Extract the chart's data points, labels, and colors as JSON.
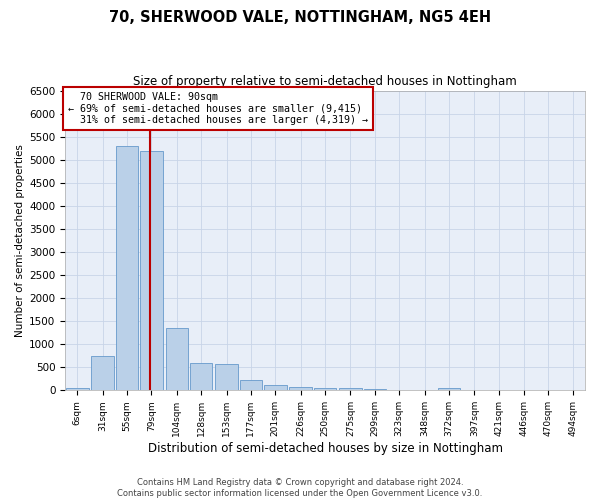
{
  "title": "70, SHERWOOD VALE, NOTTINGHAM, NG5 4EH",
  "subtitle": "Size of property relative to semi-detached houses in Nottingham",
  "xlabel": "Distribution of semi-detached houses by size in Nottingham",
  "ylabel": "Number of semi-detached properties",
  "footer_line1": "Contains HM Land Registry data © Crown copyright and database right 2024.",
  "footer_line2": "Contains public sector information licensed under the Open Government Licence v3.0.",
  "property_label": "70 SHERWOOD VALE: 90sqm",
  "pct_smaller": 69,
  "count_smaller": 9415,
  "pct_larger": 31,
  "count_larger": 4319,
  "bin_labels": [
    "6sqm",
    "31sqm",
    "55sqm",
    "79sqm",
    "104sqm",
    "128sqm",
    "153sqm",
    "177sqm",
    "201sqm",
    "226sqm",
    "250sqm",
    "275sqm",
    "299sqm",
    "323sqm",
    "348sqm",
    "372sqm",
    "397sqm",
    "421sqm",
    "446sqm",
    "470sqm",
    "494sqm"
  ],
  "bin_lefts": [
    6,
    31,
    55,
    79,
    104,
    128,
    153,
    177,
    201,
    226,
    250,
    275,
    299,
    323,
    348,
    372,
    397,
    421,
    446,
    470,
    494
  ],
  "bin_width": 24,
  "bar_heights": [
    50,
    750,
    5300,
    5200,
    1350,
    600,
    580,
    230,
    110,
    80,
    60,
    50,
    35,
    0,
    0,
    50,
    0,
    0,
    0,
    0,
    0
  ],
  "bar_color": "#bad0e8",
  "bar_edge_color": "#6699cc",
  "vline_x": 90,
  "vline_color": "#bb0000",
  "annotation_box_color": "#ffffff",
  "annotation_box_edge": "#bb0000",
  "grid_color": "#c8d4e8",
  "background_color": "#e8eef8",
  "ylim": [
    0,
    6500
  ],
  "yticks": [
    0,
    500,
    1000,
    1500,
    2000,
    2500,
    3000,
    3500,
    4000,
    4500,
    5000,
    5500,
    6000,
    6500
  ]
}
